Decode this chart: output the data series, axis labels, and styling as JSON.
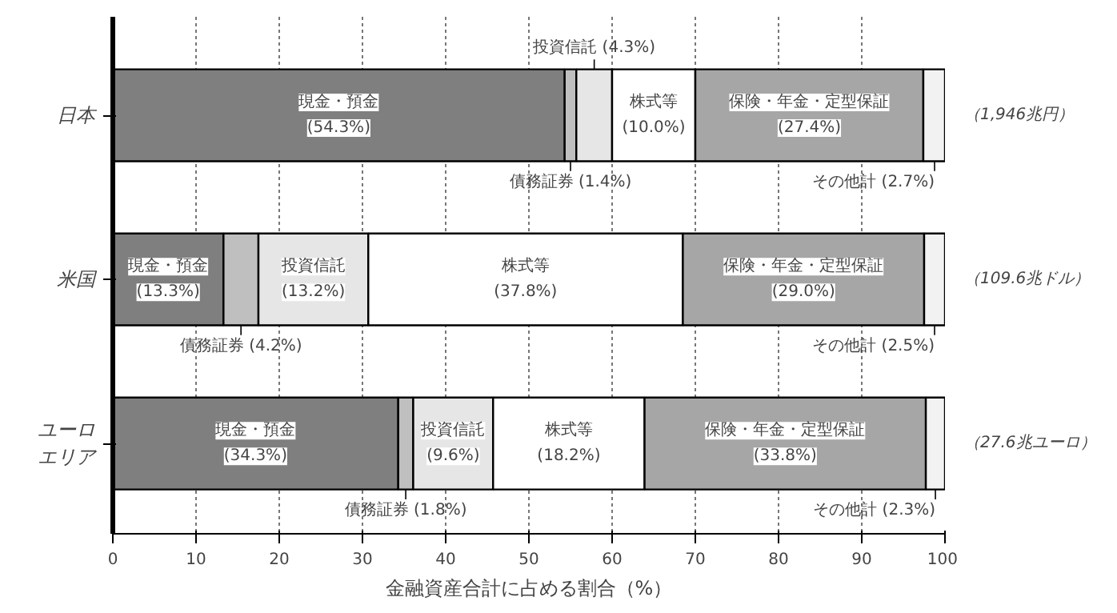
{
  "chart_data": {
    "type": "bar",
    "orientation": "horizontal",
    "stacked": true,
    "xlabel": "金融資産合計に占める割合（%）",
    "categories": [
      "日本",
      "米国",
      "ユーロエリア"
    ],
    "series": [
      {
        "name": "現金・預金",
        "color": "#7f7f7f",
        "values": [
          54.3,
          13.3,
          34.3
        ],
        "value_labels": [
          "(54.3%)",
          "(13.3%)",
          "(34.3%)"
        ]
      },
      {
        "name": "債務証券",
        "color": "#bfbfbf",
        "values": [
          1.4,
          4.2,
          1.8
        ],
        "value_labels": [
          "(1.4%)",
          "(4.2%)",
          "(1.8%)"
        ]
      },
      {
        "name": "投資信託",
        "color": "#e6e6e6",
        "values": [
          4.3,
          13.2,
          9.6
        ],
        "value_labels": [
          "(4.3%)",
          "(13.2%)",
          "(9.6%)"
        ]
      },
      {
        "name": "株式等",
        "color": "#ffffff",
        "values": [
          10.0,
          37.8,
          18.2
        ],
        "value_labels": [
          "(10.0%)",
          "(37.8%)",
          "(18.2%)"
        ]
      },
      {
        "name": "保険・年金・定型保証",
        "color": "#a6a6a6",
        "values": [
          27.4,
          29.0,
          33.8
        ],
        "value_labels": [
          "(27.4%)",
          "(29.0%)",
          "(33.8%)"
        ]
      },
      {
        "name": "その他計",
        "color": "#f2f2f2",
        "values": [
          2.7,
          2.5,
          2.3
        ],
        "value_labels": [
          "(2.7%)",
          "(2.5%)",
          "(2.3%)"
        ]
      }
    ],
    "annotations": [
      "（1,946兆円）",
      "（109.6兆ドル）",
      "（27.6兆ユーロ）"
    ],
    "xlim": [
      0,
      100
    ],
    "xticks": [
      0,
      10,
      20,
      30,
      40,
      50,
      60,
      70,
      80,
      90,
      100
    ],
    "grid": "x"
  }
}
